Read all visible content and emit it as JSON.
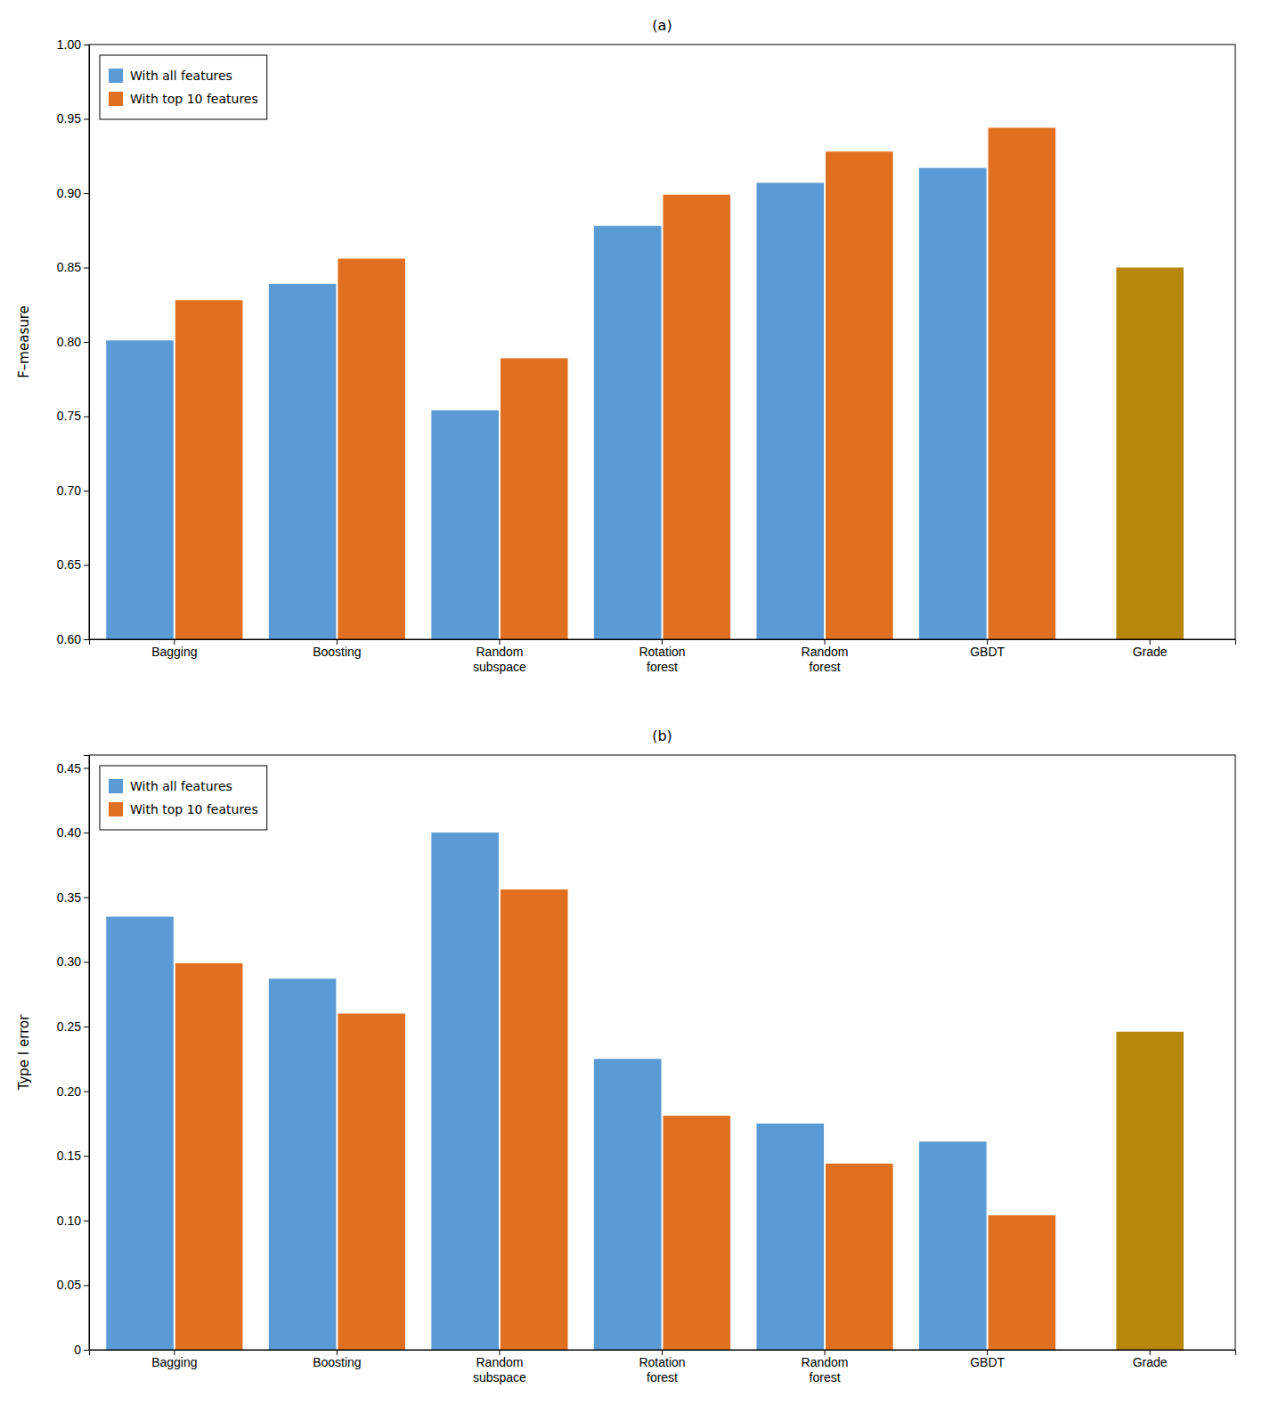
{
  "chart_data": [
    {
      "type": "bar",
      "title": "(a)",
      "y_label": "F–measure",
      "categories": [
        "Bagging",
        "Boosting",
        "Random\nsubspace",
        "Rotation\nforest",
        "Random\nforest",
        "GBDT",
        "Grade"
      ],
      "series": [
        {
          "name": "With all features",
          "color": "#5B9BD5",
          "values": [
            0.801,
            0.839,
            0.754,
            0.878,
            0.907,
            0.917,
            null
          ]
        },
        {
          "name": "With top 10 features",
          "color": "#E07020",
          "values": [
            0.828,
            0.856,
            0.789,
            0.899,
            0.928,
            0.944,
            null
          ]
        },
        {
          "color": "#B8860B",
          "values": [
            null,
            null,
            null,
            null,
            null,
            null,
            0.85
          ]
        }
      ],
      "ylim": [
        0.6,
        1.0
      ],
      "yticks": [
        {
          "value": 0.6,
          "label": "0.60"
        },
        0.65,
        {
          "value": 0.7,
          "label": "0.70"
        },
        0.75,
        {
          "value": 0.8,
          "label": "0.80"
        },
        0.85,
        {
          "value": 0.9,
          "label": "0.90"
        },
        0.95,
        {
          "value": 1,
          "label": "1.00"
        }
      ],
      "grid": false,
      "legend": "upper left"
    },
    {
      "type": "bar",
      "title": "(b)",
      "y_label": "Type I error",
      "categories": [
        "Bagging",
        "Boosting",
        "Random\nsubspace",
        "Rotation\nforest",
        "Random\nforest",
        "GBDT",
        "Grade"
      ],
      "series": [
        {
          "name": "With all features",
          "color": "#5B9BD5",
          "values": [
            0.335,
            0.287,
            0.4,
            0.225,
            0.175,
            0.161,
            null
          ]
        },
        {
          "name": "With top 10 features",
          "color": "#E07020",
          "values": [
            0.299,
            0.26,
            0.356,
            0.181,
            0.144,
            0.104,
            null
          ]
        },
        {
          "color": "#B8860B",
          "values": [
            null,
            null,
            null,
            null,
            null,
            null,
            0.246
          ]
        }
      ],
      "ylim": [
        0.0,
        0.46
      ],
      "yticks": [
        0,
        0.05,
        {
          "value": 0.1,
          "label": "0.10"
        },
        0.15,
        {
          "value": 0.2,
          "label": "0.20"
        },
        0.25,
        {
          "value": 0.3,
          "label": "0.30"
        },
        0.35,
        {
          "value": 0.4,
          "label": "0.40"
        },
        0.45
      ],
      "grid": false,
      "legend": "upper left"
    }
  ]
}
